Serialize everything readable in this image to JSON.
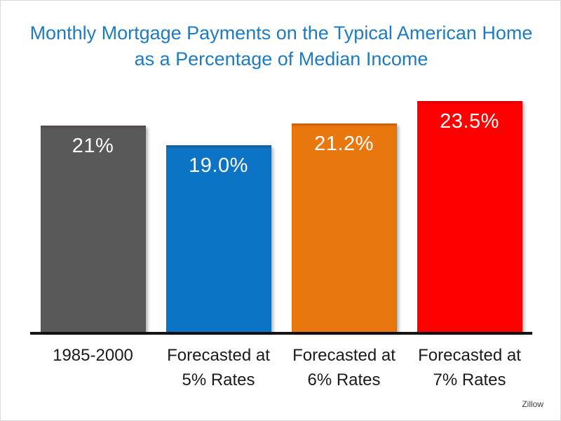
{
  "title": {
    "text": "Monthly Mortgage Payments on the Typical American Home as a Percentage of Median Income",
    "color": "#1E7BC2"
  },
  "source": "Zillow",
  "chart_data": {
    "type": "bar",
    "title": "Monthly Mortgage Payments on the Typical American Home as a Percentage of Median Income",
    "categories": [
      "1985-2000",
      "Forecasted at 5% Rates",
      "Forecasted at 6% Rates",
      "Forecasted at 7% Rates"
    ],
    "category_lines": [
      [
        "1985-2000"
      ],
      [
        "Forecasted at",
        "5% Rates"
      ],
      [
        "Forecasted at",
        "6% Rates"
      ],
      [
        "Forecasted at",
        "7% Rates"
      ]
    ],
    "values": [
      21,
      19.0,
      21.2,
      23.5
    ],
    "value_labels": [
      "21%",
      "19.0%",
      "21.2%",
      "23.5%"
    ],
    "bar_colors": [
      "#595959",
      "#0C74C4",
      "#E8770D",
      "#FE0000"
    ],
    "value_label_color": "#FFFFFF",
    "axis_color": "#141414",
    "ylim": [
      0,
      25
    ],
    "grid": false,
    "legend": false,
    "source": "Zillow"
  }
}
